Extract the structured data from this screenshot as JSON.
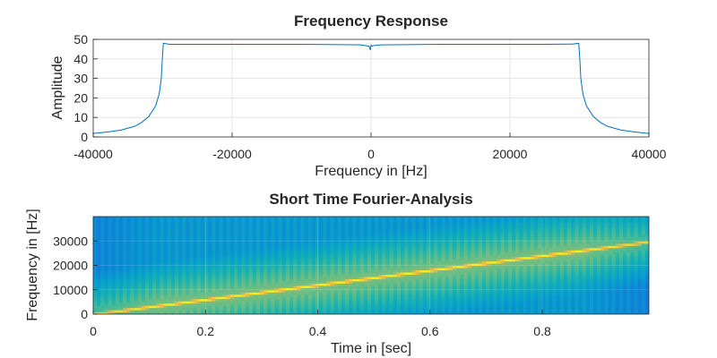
{
  "chart_data": [
    {
      "type": "line",
      "title": "Frequency Response",
      "xlabel": "Frequency in [Hz]",
      "ylabel": "Amplitude",
      "xlim": [
        -40000,
        40000
      ],
      "ylim": [
        0,
        50
      ],
      "grid": true,
      "x_ticks": [
        -40000,
        -20000,
        0,
        20000,
        40000
      ],
      "y_ticks": [
        0,
        10,
        20,
        30,
        40,
        50
      ],
      "x_tick_labels": [
        "-40000",
        "-20000",
        "0",
        "20000",
        "40000"
      ],
      "y_tick_labels": [
        "0",
        "10",
        "20",
        "30",
        "40",
        "50"
      ],
      "series": [
        {
          "color": "#0072BD",
          "x": [
            -40000,
            -38000,
            -36000,
            -34000,
            -33000,
            -32000,
            -31000,
            -30500,
            -30200,
            -30050,
            -29900,
            -29000,
            -25000,
            -20000,
            -10000,
            -1500,
            -300,
            -100,
            0,
            100,
            300,
            1500,
            10000,
            20000,
            25000,
            29000,
            29900,
            30050,
            30200,
            30500,
            31000,
            32000,
            33000,
            34000,
            36000,
            38000,
            40000
          ],
          "y": [
            1.8,
            2.5,
            3.5,
            5.5,
            7.5,
            10.5,
            16,
            22,
            30,
            40,
            48,
            47.5,
            47.5,
            47.5,
            47.5,
            47.2,
            46.5,
            44.5,
            47.0,
            46.5,
            46.8,
            47.2,
            47.5,
            47.5,
            47.5,
            47.6,
            48,
            40,
            30,
            22,
            16,
            10.5,
            7.5,
            5.5,
            3.5,
            2.5,
            1.8
          ]
        }
      ]
    },
    {
      "type": "heatmap",
      "title": "Short Time Fourier-Analysis",
      "xlabel": "Time in [sec]",
      "ylabel": "Frequency in [Hz]",
      "xlim": [
        0,
        0.99
      ],
      "ylim": [
        0,
        40000
      ],
      "grid": true,
      "x_ticks": [
        0,
        0.2,
        0.4,
        0.6,
        0.8
      ],
      "y_ticks": [
        0,
        10000,
        20000,
        30000
      ],
      "x_tick_labels": [
        "0",
        "0.2",
        "0.4",
        "0.6",
        "0.8"
      ],
      "y_tick_labels": [
        "0",
        "10000",
        "20000",
        "30000"
      ],
      "colormap": "parula",
      "ridge": {
        "time": [
          0,
          0.99
        ],
        "frequency": [
          0,
          29700
        ]
      }
    }
  ]
}
